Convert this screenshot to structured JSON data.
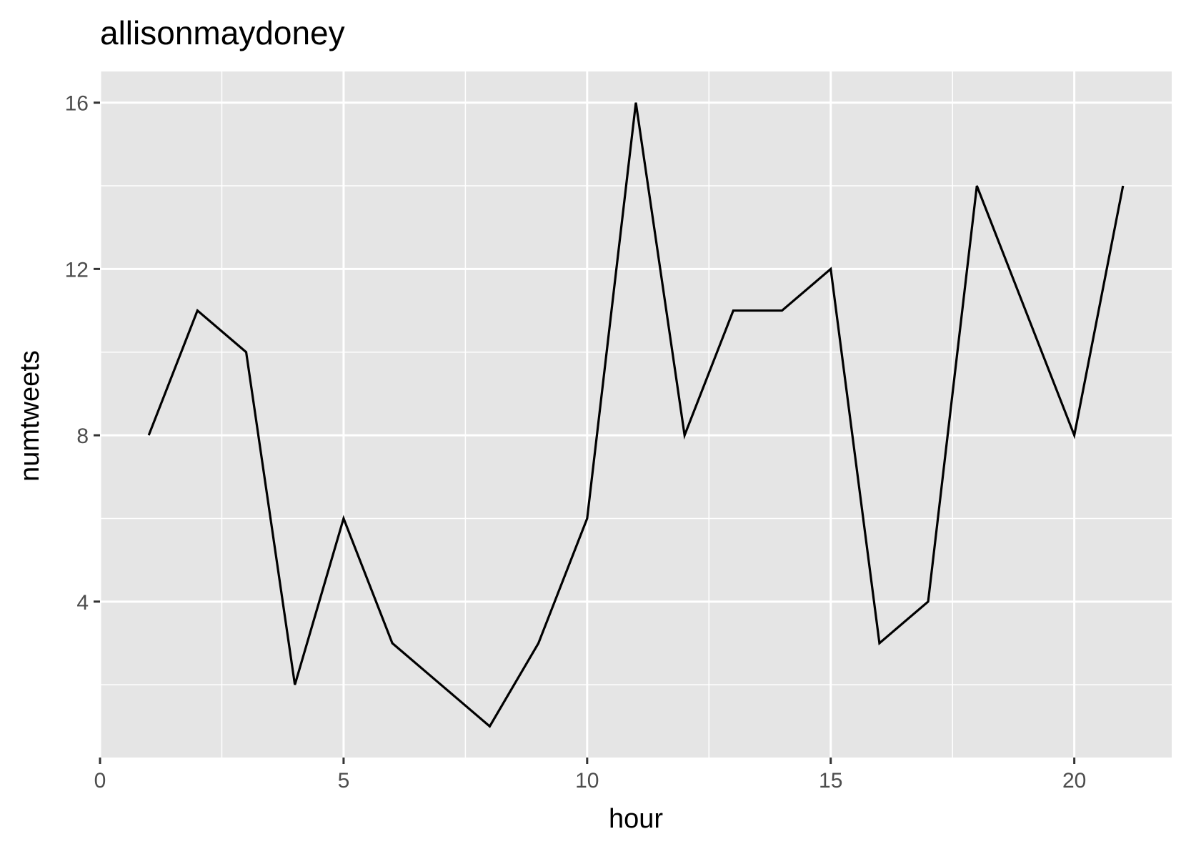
{
  "chart_data": {
    "type": "line",
    "title": "allisonmaydoney",
    "xlabel": "hour",
    "ylabel": "numtweets",
    "xlim": [
      0,
      22
    ],
    "ylim": [
      0.25,
      16.75
    ],
    "x_ticks": [
      0,
      5,
      10,
      15,
      20
    ],
    "y_ticks": [
      4,
      8,
      12,
      16
    ],
    "x_tick_labels": [
      "0",
      "5",
      "10",
      "15",
      "20"
    ],
    "y_tick_labels": [
      "4",
      "8",
      "12",
      "16"
    ],
    "grid": true,
    "legend": "none",
    "colors": {
      "panel_background": "#e5e5e5",
      "grid_line": "#ffffff",
      "series_line": "#000000",
      "tick_label": "#4d4d4d"
    },
    "series": [
      {
        "x": [
          1,
          2,
          3,
          4,
          5,
          6,
          7,
          8,
          9,
          10,
          11,
          12,
          13,
          14,
          15,
          16,
          17,
          18,
          19,
          20,
          21
        ],
        "y": [
          8,
          11,
          10,
          2,
          6,
          3,
          2,
          1,
          3,
          6,
          16,
          8,
          11,
          11,
          12,
          3,
          4,
          14,
          11,
          8,
          14
        ]
      }
    ]
  }
}
